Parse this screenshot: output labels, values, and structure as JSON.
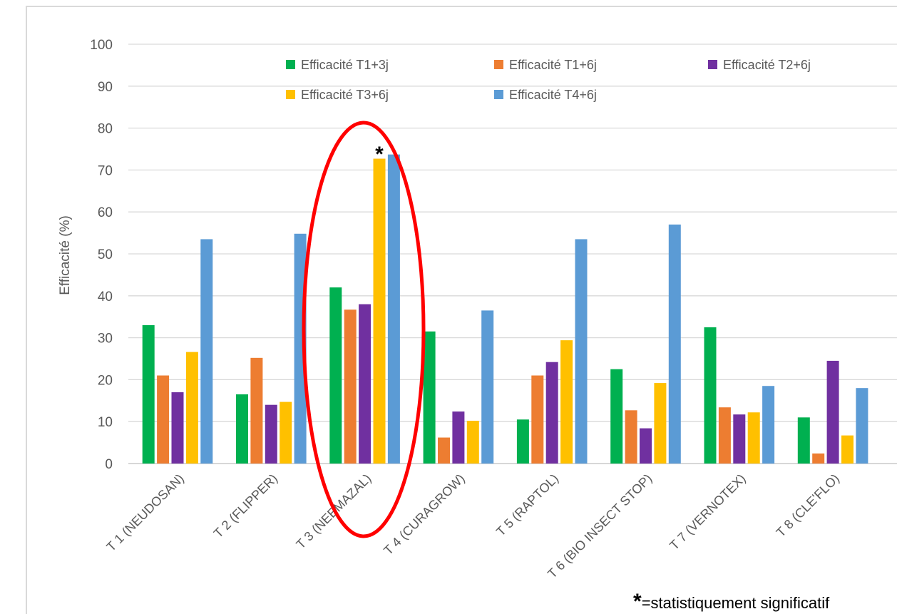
{
  "chart_data": {
    "type": "bar",
    "ylabel": "Efficacité (%)",
    "xlabel": "",
    "title": "",
    "ylim": [
      0,
      100
    ],
    "yticks": [
      0,
      10,
      20,
      30,
      40,
      50,
      60,
      70,
      80,
      90,
      100
    ],
    "grid": true,
    "legend_position": "top",
    "categories": [
      "T 1 (NEUDOSAN)",
      "T 2 (FLIPPER)",
      "T 3 (NEEMAZAL)",
      "T 4 (CURAGROW)",
      "T 5 (RAPTOL)",
      "T 6 (BIO INSECT STOP)",
      "T 7 (VERNOTEX)",
      "T 8 (CLE'FLO)"
    ],
    "series": [
      {
        "name": "Efficacité T1+3j",
        "color": "#00b050",
        "values": [
          33,
          16.5,
          42,
          31.5,
          10.5,
          22.5,
          32.5,
          11
        ]
      },
      {
        "name": "Efficacité T1+6j",
        "color": "#ed7d31",
        "values": [
          21,
          25.2,
          36.7,
          6.2,
          21,
          12.7,
          13.4,
          2.4
        ]
      },
      {
        "name": "Efficacité T2+6j",
        "color": "#7030a0",
        "values": [
          17,
          14,
          38,
          12.4,
          24.2,
          8.4,
          11.7,
          24.5
        ]
      },
      {
        "name": "Efficacité T3+6j",
        "color": "#ffc000",
        "values": [
          26.6,
          14.7,
          72.7,
          10.2,
          29.4,
          19.2,
          12.2,
          6.7
        ]
      },
      {
        "name": "Efficacité T4+6j",
        "color": "#5b9bd5",
        "values": [
          53.5,
          54.8,
          73.7,
          36.5,
          53.5,
          57,
          18.5,
          18
        ]
      }
    ],
    "annotations": {
      "star_symbol": "*",
      "highlight_category": "T 3 (NEEMAZAL)",
      "highlight_color": "#ff0000",
      "footnote_symbol": "*",
      "footnote_text": "=statistiquement significatif"
    }
  }
}
